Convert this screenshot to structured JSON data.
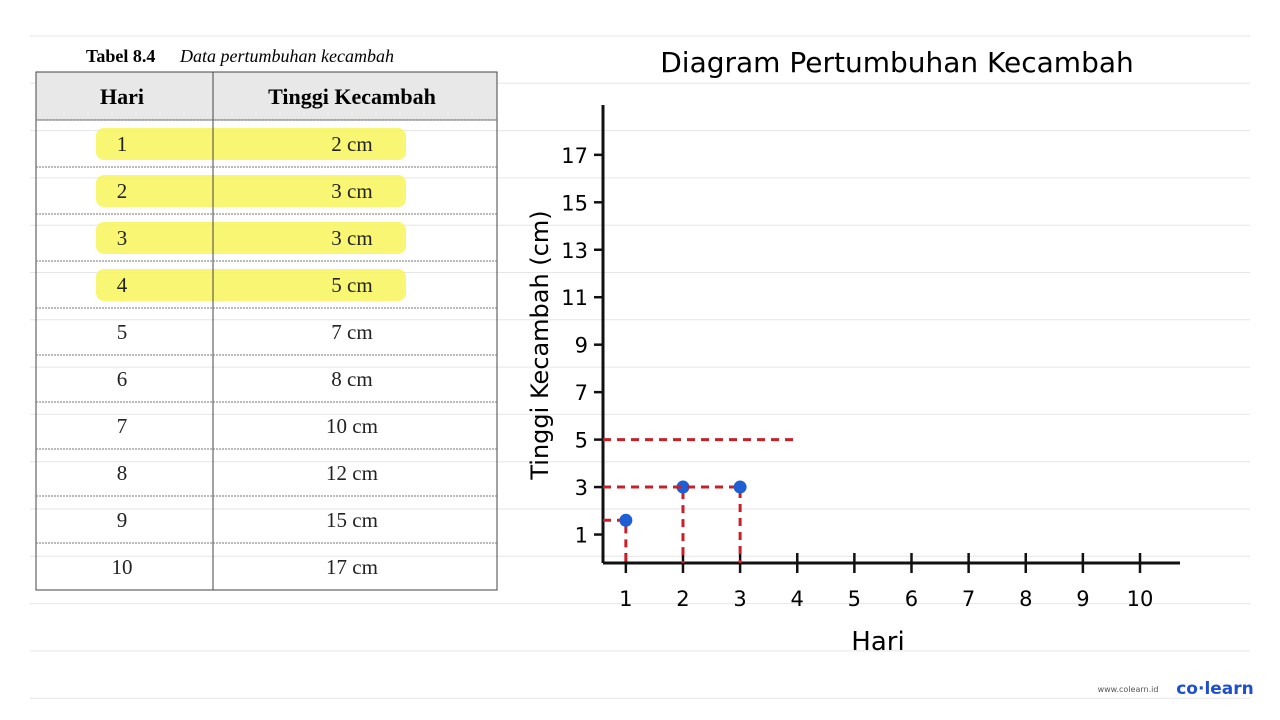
{
  "table": {
    "caption_number": "Tabel 8.4",
    "caption": "Data pertumbuhan kecambah",
    "header": [
      "Hari",
      "Tinggi Kecambah"
    ],
    "rows": [
      [
        "1",
        "2 cm"
      ],
      [
        "2",
        "3 cm"
      ],
      [
        "3",
        "3 cm"
      ],
      [
        "4",
        "5 cm"
      ],
      [
        "5",
        "7 cm"
      ],
      [
        "6",
        "8 cm"
      ],
      [
        "7",
        "10 cm"
      ],
      [
        "8",
        "12 cm"
      ],
      [
        "9",
        "15 cm"
      ],
      [
        "10",
        "17 cm"
      ]
    ],
    "highlighted_rows": [
      0,
      1,
      2,
      3
    ]
  },
  "chart_data": {
    "type": "scatter",
    "title": "Diagram Pertumbuhan Kecambah",
    "x_label": "Hari",
    "y_label": "Tinggi Kecambah (cm)",
    "x": [
      1,
      2,
      3
    ],
    "values": [
      1.6,
      3,
      3
    ],
    "color": "#1f5fd6",
    "guide_color": "#c8202a",
    "dashed_levels": [
      {
        "x": 4,
        "y": 5
      }
    ],
    "xlim": [
      0.6,
      10.7
    ],
    "xticks": [
      1,
      2,
      3,
      4,
      5,
      6,
      7,
      8,
      9,
      10
    ],
    "ylim": [
      -0.2,
      19.1
    ],
    "yticks": [
      1,
      3,
      5,
      7,
      9,
      11,
      13,
      15,
      17
    ]
  },
  "brand": {
    "url": "www.colearn.id",
    "logo": "co·learn"
  }
}
